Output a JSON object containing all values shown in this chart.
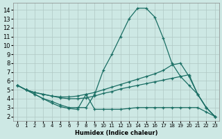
{
  "xlabel": "Humidex (Indice chaleur)",
  "background_color": "#cde8e4",
  "grid_color": "#b0c8c4",
  "line_color": "#1a6e64",
  "xlim": [
    -0.5,
    23.5
  ],
  "ylim": [
    1.5,
    14.8
  ],
  "xticks": [
    0,
    1,
    2,
    3,
    4,
    5,
    6,
    7,
    8,
    9,
    10,
    11,
    12,
    13,
    14,
    15,
    16,
    17,
    18,
    19,
    20,
    21,
    22,
    23
  ],
  "yticks": [
    2,
    3,
    4,
    5,
    6,
    7,
    8,
    9,
    10,
    11,
    12,
    13,
    14
  ],
  "lines": [
    {
      "x": [
        0,
        1,
        2,
        3,
        4,
        5,
        6,
        7,
        8,
        9,
        10,
        11,
        12,
        13,
        14,
        15,
        16,
        17,
        18,
        19,
        20,
        21,
        22,
        23
      ],
      "y": [
        5.5,
        5.0,
        4.5,
        4.0,
        3.7,
        3.3,
        3.0,
        3.0,
        3.0,
        4.5,
        7.2,
        9.0,
        11.0,
        13.0,
        14.2,
        14.2,
        13.2,
        10.8,
        8.0,
        6.5,
        5.5,
        4.5,
        3.0,
        2.0
      ]
    },
    {
      "x": [
        0,
        1,
        2,
        3,
        4,
        5,
        6,
        7,
        8,
        9,
        10,
        11,
        12,
        13,
        14,
        15,
        16,
        17,
        18,
        19,
        20,
        21,
        22,
        23
      ],
      "y": [
        5.5,
        5.0,
        4.7,
        4.5,
        4.3,
        4.2,
        4.2,
        4.3,
        4.5,
        4.7,
        5.0,
        5.3,
        5.6,
        5.9,
        6.2,
        6.5,
        6.8,
        7.2,
        7.8,
        8.0,
        6.5,
        4.5,
        3.0,
        2.0
      ]
    },
    {
      "x": [
        0,
        1,
        2,
        3,
        4,
        5,
        6,
        7,
        8,
        9,
        10,
        11,
        12,
        13,
        14,
        15,
        16,
        17,
        18,
        19,
        20,
        21,
        22,
        23
      ],
      "y": [
        5.5,
        5.0,
        4.7,
        4.5,
        4.3,
        4.1,
        4.0,
        4.0,
        4.1,
        4.3,
        4.6,
        4.8,
        5.1,
        5.3,
        5.5,
        5.7,
        5.9,
        6.1,
        6.3,
        6.5,
        6.7,
        4.5,
        3.0,
        2.0
      ]
    },
    {
      "x": [
        0,
        1,
        2,
        3,
        4,
        5,
        6,
        7,
        8,
        9,
        10,
        11,
        12,
        13,
        14,
        15,
        16,
        17,
        18,
        19,
        20,
        21,
        22,
        23
      ],
      "y": [
        5.5,
        5.0,
        4.5,
        4.0,
        3.5,
        3.1,
        2.9,
        2.8,
        4.5,
        2.8,
        2.8,
        2.8,
        2.8,
        2.9,
        3.0,
        3.0,
        3.0,
        3.0,
        3.0,
        3.0,
        3.0,
        3.0,
        2.5,
        2.0
      ]
    }
  ]
}
